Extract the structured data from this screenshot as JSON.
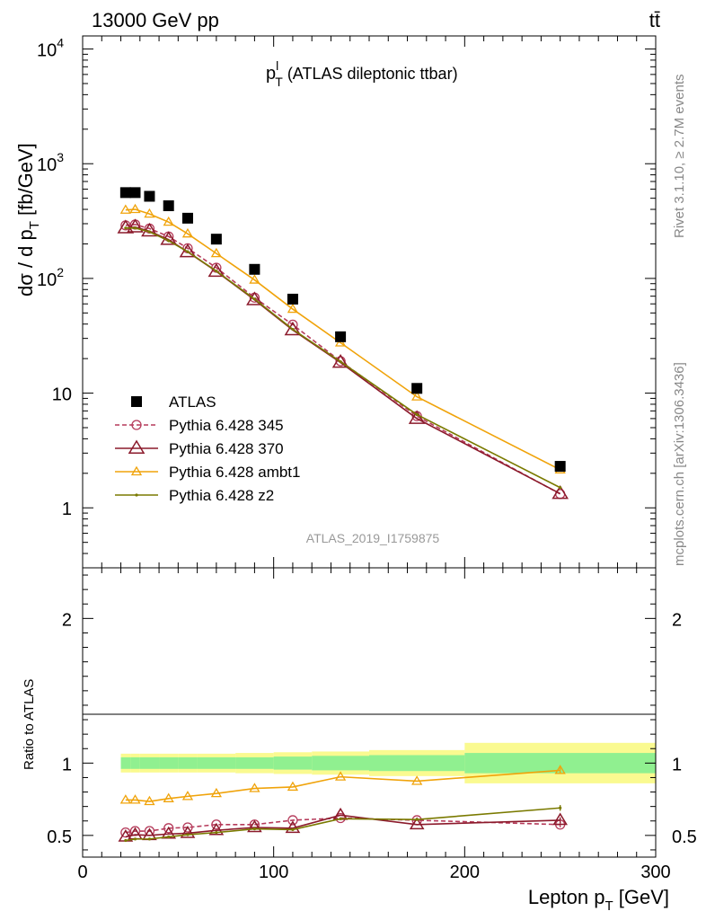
{
  "chart_data": [
    {
      "type": "scatter",
      "header_left": "13000 GeV pp",
      "header_right": "tt̄",
      "title": "p",
      "title_sup": "l",
      "title_sub": "T",
      "title_rest": " (ATLAS dileptonic ttbar)",
      "ylabel": "dσ / d p",
      "ylabel_sub": "T",
      "ylabel_units": " [fb/GeV]",
      "yscale": "log",
      "ylim": [
        0.3,
        13000
      ],
      "xlim": [
        0,
        300
      ],
      "ytick_labels": [
        "1",
        "10",
        "10",
        "10",
        "10"
      ],
      "ytick_sups": [
        "",
        "",
        "2",
        "3",
        "4"
      ],
      "analysis_id": "ATLAS_2019_I1759875",
      "side_text_top": "Rivet 3.1.10, ≥ 2.7M events",
      "side_text_bottom": "mcplots.cern.ch [arXiv:1306.3436]",
      "legend_position": "middle-left",
      "x": [
        22.5,
        27.5,
        35,
        45,
        55,
        70,
        90,
        110,
        135,
        175,
        250
      ],
      "series": [
        {
          "name": "ATLAS",
          "color": "#000000",
          "marker": "square",
          "line": "none",
          "values": [
            560,
            560,
            520,
            430,
            335,
            220,
            120,
            66,
            31,
            11,
            2.3
          ]
        },
        {
          "name": "Pythia 6.428 345",
          "color": "#b53a5a",
          "marker": "circle-open",
          "line": "dashed",
          "values": [
            290,
            295,
            272,
            232,
            183,
            124,
            68,
            39.5,
            19,
            6.3,
            1.32
          ]
        },
        {
          "name": "Pythia 6.428 370",
          "color": "#8b1a2b",
          "marker": "triangle-open",
          "line": "solid",
          "values": [
            275,
            280,
            258,
            218,
            170,
            115,
            65,
            35.5,
            18.5,
            6.0,
            1.33
          ]
        },
        {
          "name": "Pythia 6.428 ambt1",
          "color": "#f0a30a",
          "marker": "triangle-open-small",
          "line": "solid",
          "values": [
            395,
            400,
            365,
            310,
            245,
            165,
            97,
            54,
            27.5,
            9.3,
            2.15
          ]
        },
        {
          "name": "Pythia 6.428 z2",
          "color": "#7a7a00",
          "marker": "dot",
          "line": "solid",
          "values": [
            275,
            275,
            255,
            213,
            171,
            116,
            66,
            36,
            18.8,
            6.5,
            1.5
          ]
        }
      ]
    },
    {
      "type": "line",
      "ylabel": "Ratio to ATLAS",
      "xlabel": "Lepton p",
      "xlabel_sub": "T",
      "xlabel_units": " [GeV]",
      "xlim": [
        0,
        300
      ],
      "ylim": [
        0.35,
        2.35
      ],
      "xtick_labels": [
        "0",
        "100",
        "200",
        "300"
      ],
      "ytick_labels": [
        "0.5",
        "1",
        "2"
      ],
      "x": [
        22.5,
        27.5,
        35,
        45,
        55,
        70,
        90,
        110,
        135,
        175,
        250
      ],
      "bands": {
        "bins": [
          [
            20,
            25
          ],
          [
            25,
            30
          ],
          [
            30,
            40
          ],
          [
            40,
            50
          ],
          [
            50,
            60
          ],
          [
            60,
            80
          ],
          [
            80,
            100
          ],
          [
            100,
            120
          ],
          [
            120,
            150
          ],
          [
            150,
            200
          ],
          [
            200,
            300
          ]
        ],
        "inner_halfwidth": [
          0.04,
          0.04,
          0.04,
          0.04,
          0.04,
          0.04,
          0.04,
          0.045,
          0.05,
          0.055,
          0.07
        ],
        "outer_halfwidth": [
          0.065,
          0.065,
          0.065,
          0.065,
          0.065,
          0.065,
          0.07,
          0.075,
          0.08,
          0.09,
          0.14
        ],
        "inner_color": "#90f090",
        "outer_color": "#fafa90"
      },
      "series": [
        {
          "name": "Pythia 6.428 345",
          "color": "#b53a5a",
          "values": [
            0.52,
            0.53,
            0.53,
            0.55,
            0.555,
            0.575,
            0.575,
            0.605,
            0.62,
            0.605,
            0.575
          ]
        },
        {
          "name": "Pythia 6.428 370",
          "color": "#8b1a2b",
          "values": [
            0.49,
            0.505,
            0.5,
            0.51,
            0.515,
            0.535,
            0.555,
            0.55,
            0.64,
            0.575,
            0.605
          ]
        },
        {
          "name": "Pythia 6.428 ambt1",
          "color": "#f0a30a",
          "values": [
            0.745,
            0.745,
            0.735,
            0.755,
            0.77,
            0.79,
            0.825,
            0.835,
            0.905,
            0.875,
            0.95
          ]
        },
        {
          "name": "Pythia 6.428 z2",
          "color": "#7a7a00",
          "values": [
            0.465,
            0.475,
            0.475,
            0.49,
            0.505,
            0.52,
            0.545,
            0.54,
            0.615,
            0.61,
            0.69
          ]
        }
      ]
    }
  ]
}
